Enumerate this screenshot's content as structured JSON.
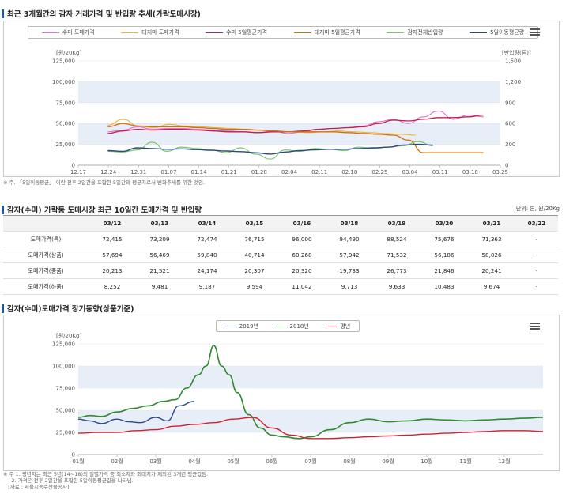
{
  "section1": {
    "title": "최근 3개월간의 감자 거래가격 및 반입량 추세(가락도매시장)",
    "legend": [
      "수미 도매가격",
      "대지마 도매가격",
      "수미 5일평균가격",
      "대지마 5일평균가격",
      "감자전체반입량",
      "5일이동평균량"
    ],
    "note": "※ 주. 「5일이동평균」 이란 전후 2일간을 포함한 5일간의 평균치로서 변화추세를 위한 것임."
  },
  "section2": {
    "title": "감자(수미) 가락동 도매시장 최근 10일간 도매가격 및 반입량",
    "unit": "단위: 톤, 원/20Kg",
    "headers": [
      "03/12",
      "03/13",
      "03/14",
      "03/15",
      "03/16",
      "03/18",
      "03/19",
      "03/20",
      "03/21",
      "03/22"
    ],
    "rows": [
      {
        "label": "도매가격(특)",
        "values": [
          "72,415",
          "73,209",
          "72,474",
          "76,715",
          "96,000",
          "94,490",
          "88,524",
          "75,676",
          "71,363",
          "-"
        ]
      },
      {
        "label": "도매가격(상품)",
        "values": [
          "57,694",
          "56,469",
          "59,840",
          "40,714",
          "60,268",
          "57,942",
          "71,532",
          "56,186",
          "58,026",
          "-"
        ]
      },
      {
        "label": "도매가격(중품)",
        "values": [
          "20,213",
          "21,521",
          "24,174",
          "20,307",
          "20,320",
          "19,733",
          "26,773",
          "21,846",
          "20,241",
          "-"
        ]
      },
      {
        "label": "도매가격(하품)",
        "values": [
          "8,252",
          "9,481",
          "9,187",
          "9,594",
          "11,042",
          "9,713",
          "9,633",
          "10,483",
          "9,674",
          "-"
        ]
      }
    ]
  },
  "section3": {
    "title": "감자(수미)도매가격 장기동향(상품기준)",
    "legend": [
      "2019년",
      "2018년",
      "평년"
    ],
    "note": "※ 주 1. 평년치는 최근 5년(14~18)의 일별가격 중 최소치와 최대치가 제외된 3개년 평균값임.\n     2. 가격은 전후 2일간을 포함한 5일이동평균값을 나타냄.\n   [자료 : 서울시농수산물공사]"
  },
  "colors": {
    "sumi_price": "#e070d0",
    "daejima_price": "#f0b040",
    "sumi_avg": "#c0204a",
    "daejima_avg": "#d07010",
    "volume": "#7cc870",
    "volume_avg": "#2c4a7a",
    "y2019": "#2c4a8a",
    "y2018": "#2f8a2f",
    "normal": "#d02030",
    "band": "#e8eef8"
  },
  "chart_data": [
    {
      "type": "line",
      "ylabel": "[원/20Kg]",
      "y2label": "[반입량(톤)]",
      "ylim": [
        0,
        125000
      ],
      "y2lim": [
        0,
        1500
      ],
      "yticks": [
        "0",
        "25,000",
        "50,000",
        "75,000",
        "100,000",
        "125,000"
      ],
      "y2ticks": [
        "0",
        "300",
        "600",
        "900",
        "1,200",
        "1,500"
      ],
      "xticks": [
        "12.17",
        "12.24",
        "12.31",
        "01.07",
        "01.14",
        "01.21",
        "01.28",
        "02.04",
        "02.11",
        "02.18",
        "02.25",
        "03.04",
        "03.11",
        "03.18",
        "03.25"
      ],
      "series": [
        {
          "name": "수미 도매가격",
          "axis": "left",
          "values": [
            40000,
            42000,
            46000,
            43000,
            44000,
            44000,
            43000,
            42000,
            41000,
            40000,
            39000,
            41000,
            38000,
            40000,
            43000,
            44000,
            45000,
            47000,
            52000,
            55000,
            50000,
            58000,
            65000,
            55000,
            60000,
            58000
          ]
        },
        {
          "name": "대지마 도매가격",
          "axis": "left",
          "values": [
            48000,
            55000,
            47000,
            45000,
            49000,
            47000,
            46000,
            45000,
            44000,
            43000,
            42000,
            41000,
            40000,
            39000,
            40000,
            41000,
            40000,
            39000,
            38000,
            37000,
            36000
          ]
        },
        {
          "name": "수미 5일평균가격",
          "axis": "left",
          "values": [
            38000,
            41000,
            43000,
            42000,
            43000,
            43000,
            42000,
            41000,
            40000,
            40000,
            39000,
            40000,
            40000,
            41000,
            43000,
            44000,
            45000,
            46000,
            50000,
            54000,
            53000,
            55000,
            57000,
            57000,
            58000,
            60000
          ]
        },
        {
          "name": "대지마 5일평균가격",
          "axis": "left",
          "values": [
            46000,
            50000,
            47000,
            46000,
            46000,
            46000,
            45000,
            44000,
            43000,
            43000,
            42000,
            41000,
            40000,
            40000,
            40000,
            40000,
            39000,
            38000,
            37000,
            36000,
            30000,
            15000,
            15000,
            15000,
            15000,
            15000
          ]
        },
        {
          "name": "감자전체반입량",
          "axis": "right",
          "values": [
            200,
            190,
            220,
            330,
            200,
            260,
            240,
            220,
            180,
            250,
            160,
            90,
            220,
            200,
            240,
            230,
            210,
            260,
            240,
            260,
            280,
            340,
            280
          ]
        },
        {
          "name": "5일이동평균량",
          "axis": "right",
          "values": [
            210,
            200,
            250,
            240,
            230,
            235,
            225,
            215,
            205,
            195,
            180,
            160,
            190,
            210,
            220,
            230,
            230,
            240,
            250,
            260,
            290,
            300,
            290
          ]
        }
      ]
    },
    {
      "type": "line",
      "ylabel": "[원/20Kg]",
      "ylim": [
        0,
        125000
      ],
      "yticks": [
        "0",
        "25,000",
        "50,000",
        "75,000",
        "100,000",
        "125,000"
      ],
      "xticks": [
        "01월",
        "02월",
        "03월",
        "04월",
        "05월",
        "06월",
        "07월",
        "08월",
        "09월",
        "10월",
        "11월",
        "12월"
      ],
      "series": [
        {
          "name": "2019년",
          "x": [
            1,
            1.3,
            1.6,
            2,
            2.3,
            2.6,
            3,
            3.3,
            3.6,
            4
          ],
          "values": [
            40000,
            38000,
            35000,
            40000,
            37000,
            36000,
            42000,
            38000,
            55000,
            60000
          ]
        },
        {
          "name": "2018년",
          "x": [
            1,
            1.3,
            1.6,
            2,
            2.4,
            2.8,
            3.2,
            3.5,
            3.8,
            4.1,
            4.3,
            4.5,
            4.7,
            4.9,
            5.1,
            5.4,
            5.7,
            6,
            6.3,
            6.7,
            7,
            7.5,
            8,
            8.5,
            9,
            9.5,
            10,
            10.5,
            11,
            11.5,
            12,
            12.5,
            13
          ],
          "values": [
            42000,
            44000,
            43000,
            48000,
            52000,
            55000,
            60000,
            62000,
            75000,
            90000,
            100000,
            123000,
            100000,
            90000,
            70000,
            45000,
            30000,
            22000,
            20000,
            18000,
            20000,
            28000,
            36000,
            40000,
            37000,
            38000,
            40000,
            39000,
            38000,
            39000,
            40000,
            41000,
            42000
          ]
        },
        {
          "name": "평년",
          "x": [
            1,
            1.5,
            2,
            2.5,
            3,
            3.5,
            4,
            4.5,
            5,
            5.5,
            6,
            6.5,
            7,
            7.5,
            8,
            8.5,
            9,
            9.5,
            10,
            10.5,
            11,
            11.5,
            12,
            12.5,
            13
          ],
          "values": [
            24000,
            25000,
            25000,
            27000,
            28000,
            32000,
            34000,
            36000,
            40000,
            42000,
            30000,
            22000,
            18000,
            18000,
            19000,
            20000,
            21000,
            22000,
            23000,
            24000,
            25000,
            26000,
            27000,
            27000,
            26000
          ]
        }
      ]
    }
  ]
}
